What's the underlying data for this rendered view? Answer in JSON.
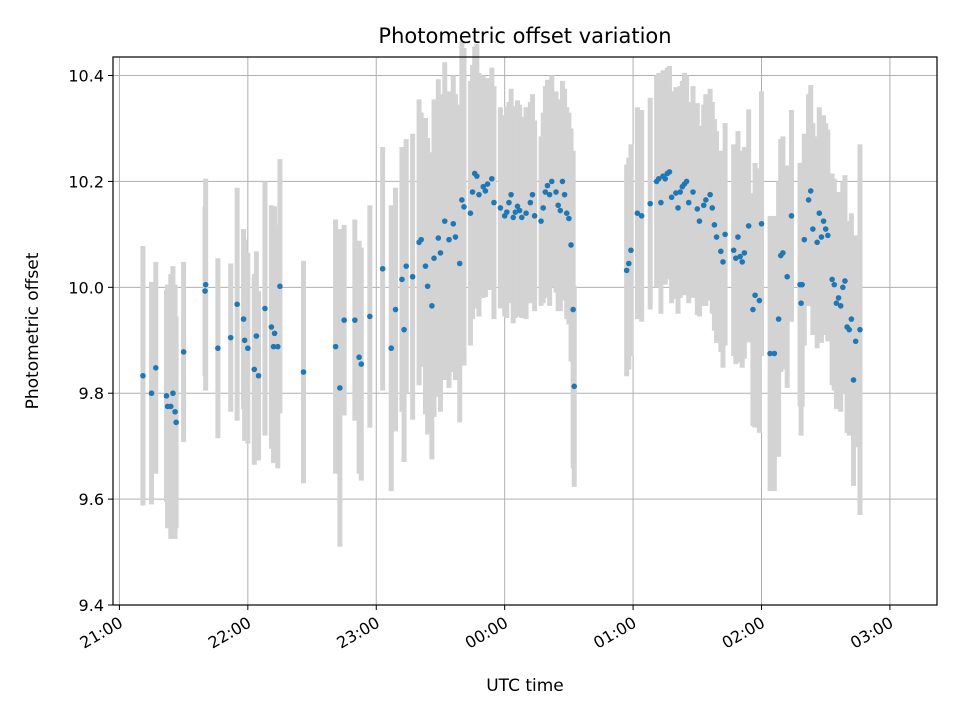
{
  "chart_data": {
    "type": "scatter",
    "title": "Photometric offset variation",
    "xlabel": "UTC time",
    "ylabel": "Photometric offset",
    "x_unit": "minutes after 21:00 UTC",
    "xlim": [
      -3,
      382
    ],
    "ylim": [
      9.4,
      10.435
    ],
    "x_ticks": [
      {
        "value": 0,
        "label": "21:00"
      },
      {
        "value": 60,
        "label": "22:00"
      },
      {
        "value": 120,
        "label": "23:00"
      },
      {
        "value": 180,
        "label": "00:00"
      },
      {
        "value": 240,
        "label": "01:00"
      },
      {
        "value": 300,
        "label": "02:00"
      },
      {
        "value": 360,
        "label": "03:00"
      }
    ],
    "y_ticks": [
      {
        "value": 9.4,
        "label": "9.4"
      },
      {
        "value": 9.6,
        "label": "9.6"
      },
      {
        "value": 9.8,
        "label": "9.8"
      },
      {
        "value": 10.0,
        "label": "10.0"
      },
      {
        "value": 10.2,
        "label": "10.2"
      },
      {
        "value": 10.4,
        "label": "10.4"
      }
    ],
    "grid": true,
    "colors": {
      "points": "#1f77b4",
      "errorbars": "#d3d3d3",
      "grid": "#b0b0b0"
    },
    "points": [
      [
        11,
        9.833,
        0.245
      ],
      [
        15,
        9.8,
        0.21
      ],
      [
        17,
        9.848,
        0.2
      ],
      [
        22,
        9.795,
        0.2
      ],
      [
        22.5,
        9.775,
        0.23
      ],
      [
        24,
        9.775,
        0.25
      ],
      [
        25,
        9.8,
        0.24
      ],
      [
        26,
        9.765,
        0.24
      ],
      [
        26.5,
        9.745,
        0.2
      ],
      [
        30,
        9.878,
        0.17
      ],
      [
        40,
        9.993,
        0.16
      ],
      [
        40.3,
        10.005,
        0.2
      ],
      [
        46,
        9.885,
        0.17
      ],
      [
        52,
        9.905,
        0.14
      ],
      [
        55,
        9.968,
        0.22
      ],
      [
        58,
        9.94,
        0.17
      ],
      [
        58.5,
        9.9,
        0.19
      ],
      [
        60,
        9.885,
        0.18
      ],
      [
        63,
        9.845,
        0.18
      ],
      [
        64,
        9.908,
        0.16
      ],
      [
        65,
        9.833,
        0.16
      ],
      [
        68,
        9.96,
        0.24
      ],
      [
        71,
        9.925,
        0.23
      ],
      [
        72,
        9.888,
        0.22
      ],
      [
        72.5,
        9.913,
        0.24
      ],
      [
        74,
        9.888,
        0.23
      ],
      [
        75,
        10.002,
        0.24
      ],
      [
        86,
        9.84,
        0.21
      ],
      [
        101,
        9.888,
        0.24
      ],
      [
        103,
        9.81,
        0.3
      ],
      [
        105,
        9.938,
        0.18
      ],
      [
        110,
        9.938,
        0.19
      ],
      [
        112,
        9.868,
        0.22
      ],
      [
        113,
        9.855,
        0.22
      ],
      [
        117,
        9.945,
        0.21
      ],
      [
        123,
        10.035,
        0.23
      ],
      [
        127,
        9.885,
        0.27
      ],
      [
        129,
        9.958,
        0.23
      ],
      [
        132,
        10.015,
        0.25
      ],
      [
        133,
        9.92,
        0.25
      ],
      [
        134,
        10.04,
        0.24
      ],
      [
        137,
        10.02,
        0.27
      ],
      [
        140,
        10.085,
        0.27
      ],
      [
        141,
        10.09,
        0.24
      ],
      [
        143,
        10.04,
        0.28
      ],
      [
        144,
        10.002,
        0.28
      ],
      [
        146,
        9.965,
        0.29
      ],
      [
        147,
        10.055,
        0.3
      ],
      [
        149,
        10.093,
        0.3
      ],
      [
        150,
        10.065,
        0.3
      ],
      [
        152,
        10.125,
        0.3
      ],
      [
        154,
        10.09,
        0.28
      ],
      [
        156,
        10.12,
        0.28
      ],
      [
        157,
        10.095,
        0.27
      ],
      [
        159,
        10.045,
        0.3
      ],
      [
        160,
        10.165,
        0.3
      ],
      [
        161,
        10.152,
        0.3
      ],
      [
        164,
        10.14,
        0.25
      ],
      [
        165,
        10.18,
        0.24
      ],
      [
        166,
        10.215,
        0.24
      ],
      [
        167,
        10.21,
        0.25
      ],
      [
        168,
        10.175,
        0.23
      ],
      [
        170,
        10.19,
        0.21
      ],
      [
        171,
        10.182,
        0.2
      ],
      [
        172,
        10.195,
        0.2
      ],
      [
        174,
        10.205,
        0.21
      ],
      [
        175,
        10.16,
        0.22
      ],
      [
        178,
        10.15,
        0.19
      ],
      [
        180,
        10.135,
        0.19
      ],
      [
        181,
        10.142,
        0.2
      ],
      [
        182,
        10.16,
        0.19
      ],
      [
        183,
        10.175,
        0.2
      ],
      [
        184,
        10.132,
        0.2
      ],
      [
        185,
        10.142,
        0.2
      ],
      [
        186,
        10.153,
        0.2
      ],
      [
        187,
        10.145,
        0.2
      ],
      [
        188,
        10.132,
        0.19
      ],
      [
        190,
        10.14,
        0.2
      ],
      [
        192,
        10.16,
        0.19
      ],
      [
        193,
        10.175,
        0.19
      ],
      [
        194,
        10.135,
        0.18
      ],
      [
        197,
        10.125,
        0.16
      ],
      [
        198,
        10.15,
        0.18
      ],
      [
        199,
        10.18,
        0.2
      ],
      [
        200,
        10.192,
        0.2
      ],
      [
        201,
        10.175,
        0.21
      ],
      [
        202,
        10.2,
        0.2
      ],
      [
        204,
        10.18,
        0.19
      ],
      [
        205,
        10.155,
        0.2
      ],
      [
        206,
        10.145,
        0.19
      ],
      [
        207,
        10.2,
        0.19
      ],
      [
        208,
        10.175,
        0.2
      ],
      [
        209,
        10.14,
        0.2
      ],
      [
        210,
        10.13,
        0.2
      ],
      [
        211,
        10.08,
        0.22
      ],
      [
        212,
        9.958,
        0.3
      ],
      [
        212.5,
        9.813,
        0.19
      ],
      [
        237,
        10.032,
        0.2
      ],
      [
        238,
        10.045,
        0.2
      ],
      [
        239,
        10.07,
        0.2
      ],
      [
        242,
        10.14,
        0.2
      ],
      [
        244,
        10.135,
        0.2
      ],
      [
        248,
        10.158,
        0.2
      ],
      [
        251,
        10.2,
        0.2
      ],
      [
        252,
        10.205,
        0.2
      ],
      [
        253,
        10.16,
        0.21
      ],
      [
        254,
        10.21,
        0.2
      ],
      [
        255,
        10.205,
        0.2
      ],
      [
        256,
        10.215,
        0.2
      ],
      [
        257,
        10.218,
        0.2
      ],
      [
        258,
        10.17,
        0.2
      ],
      [
        260,
        10.178,
        0.2
      ],
      [
        261,
        10.15,
        0.2
      ],
      [
        262,
        10.18,
        0.2
      ],
      [
        263,
        10.19,
        0.2
      ],
      [
        264,
        10.195,
        0.21
      ],
      [
        265,
        10.2,
        0.2
      ],
      [
        266,
        10.16,
        0.19
      ],
      [
        268,
        10.18,
        0.2
      ],
      [
        270,
        10.148,
        0.2
      ],
      [
        271,
        10.125,
        0.18
      ],
      [
        273,
        10.155,
        0.19
      ],
      [
        274,
        10.165,
        0.2
      ],
      [
        276,
        10.175,
        0.2
      ],
      [
        277,
        10.15,
        0.2
      ],
      [
        278,
        10.118,
        0.2
      ],
      [
        279,
        10.095,
        0.2
      ],
      [
        281,
        10.068,
        0.19
      ],
      [
        282,
        10.048,
        0.2
      ],
      [
        283,
        10.1,
        0.21
      ],
      [
        287,
        10.07,
        0.2
      ],
      [
        288,
        10.055,
        0.2
      ],
      [
        289,
        10.095,
        0.2
      ],
      [
        290,
        10.058,
        0.2
      ],
      [
        291,
        10.048,
        0.2
      ],
      [
        292,
        10.065,
        0.2
      ],
      [
        294,
        10.116,
        0.22
      ],
      [
        296,
        9.958,
        0.22
      ],
      [
        297,
        9.985,
        0.25
      ],
      [
        299,
        9.975,
        0.25
      ],
      [
        300,
        10.12,
        0.25
      ],
      [
        304,
        9.875,
        0.26
      ],
      [
        306,
        9.875,
        0.26
      ],
      [
        308,
        9.94,
        0.26
      ],
      [
        309,
        10.06,
        0.22
      ],
      [
        310,
        10.065,
        0.22
      ],
      [
        312,
        10.02,
        0.21
      ],
      [
        314,
        10.135,
        0.2
      ],
      [
        318,
        10.005,
        0.23
      ],
      [
        318.5,
        9.97,
        0.25
      ],
      [
        319,
        10.005,
        0.23
      ],
      [
        320,
        10.09,
        0.2
      ],
      [
        322,
        10.165,
        0.2
      ],
      [
        323,
        10.182,
        0.2
      ],
      [
        324,
        10.11,
        0.2
      ],
      [
        326,
        10.085,
        0.2
      ],
      [
        327,
        10.14,
        0.2
      ],
      [
        328,
        10.095,
        0.2
      ],
      [
        329,
        10.125,
        0.2
      ],
      [
        330,
        10.11,
        0.2
      ],
      [
        331,
        10.098,
        0.2
      ],
      [
        333,
        10.015,
        0.2
      ],
      [
        334,
        10.005,
        0.2
      ],
      [
        335,
        9.97,
        0.2
      ],
      [
        336,
        9.98,
        0.2
      ],
      [
        337,
        9.965,
        0.2
      ],
      [
        338,
        10.0,
        0.2
      ],
      [
        339,
        10.012,
        0.2
      ],
      [
        340,
        9.925,
        0.2
      ],
      [
        341,
        9.92,
        0.2
      ],
      [
        342,
        9.94,
        0.2
      ],
      [
        343,
        9.825,
        0.2
      ],
      [
        344,
        9.898,
        0.2
      ],
      [
        346,
        9.92,
        0.35
      ]
    ]
  }
}
